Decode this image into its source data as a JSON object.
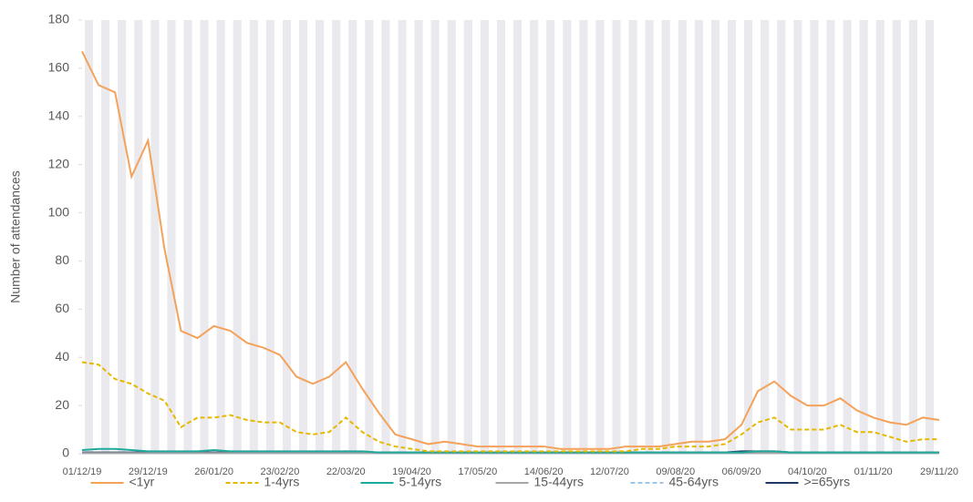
{
  "chart_data": {
    "type": "line",
    "y_label": "Number of attendances",
    "categories": [
      "01/12/19",
      null,
      null,
      null,
      "29/12/19",
      null,
      null,
      null,
      "26/01/20",
      null,
      null,
      null,
      "23/02/20",
      null,
      null,
      null,
      "22/03/20",
      null,
      null,
      null,
      "19/04/20",
      null,
      null,
      null,
      "17/05/20",
      null,
      null,
      null,
      "14/06/20",
      null,
      null,
      null,
      "12/07/20",
      null,
      null,
      null,
      "09/08/20",
      null,
      null,
      null,
      "06/09/20",
      null,
      null,
      null,
      "04/10/20",
      null,
      null,
      null,
      "01/11/20",
      null,
      null,
      null,
      "29/11/20"
    ],
    "ylim": [
      0,
      180
    ],
    "yticks": [
      0,
      20,
      40,
      60,
      80,
      100,
      120,
      140,
      160,
      180
    ],
    "series": [
      {
        "name": "<1yr",
        "color": "#f4a25a",
        "dashed": false,
        "values": [
          167,
          153,
          150,
          115,
          130,
          85,
          51,
          48,
          53,
          51,
          46,
          44,
          41,
          32,
          29,
          32,
          38,
          27,
          17,
          8,
          6,
          4,
          5,
          4,
          3,
          3,
          3,
          3,
          3,
          2,
          2,
          2,
          2,
          3,
          3,
          3,
          4,
          5,
          5,
          6,
          12,
          26,
          30,
          24,
          20,
          20,
          23,
          18,
          15,
          13,
          12,
          15,
          14
        ]
      },
      {
        "name": "1-4yrs",
        "color": "#e6b800",
        "dashed": true,
        "values": [
          38,
          37,
          31,
          29,
          25,
          22,
          11,
          15,
          15,
          16,
          14,
          13,
          13,
          9,
          8,
          9,
          15,
          9,
          5,
          3,
          2,
          1,
          1,
          1,
          1,
          1,
          1,
          1,
          1,
          1,
          1,
          1,
          1,
          1,
          2,
          2,
          3,
          3,
          3,
          4,
          8,
          13,
          15,
          10,
          10,
          10,
          12,
          9,
          9,
          7,
          5,
          6,
          6
        ]
      },
      {
        "name": "5-14yrs",
        "color": "#1fa99a",
        "dashed": false,
        "values": [
          1.5,
          2,
          2,
          1.5,
          1,
          1,
          1,
          1,
          1.5,
          1,
          1,
          1,
          1,
          1,
          1,
          1,
          1,
          1,
          0.5,
          0.5,
          0.5,
          0.5,
          0.5,
          0.5,
          0.5,
          0.5,
          0.5,
          0.5,
          0.5,
          0.5,
          0.5,
          0.5,
          0.5,
          0.5,
          0.5,
          0.5,
          0.5,
          0.5,
          0.5,
          0.5,
          0.5,
          1,
          1,
          0.5,
          0.5,
          0.5,
          0.5,
          0.5,
          0.5,
          0.5,
          0.5,
          0.5,
          0.5
        ]
      },
      {
        "name": "15-44yrs",
        "color": "#a6a6a6",
        "dashed": false,
        "values": [
          0.3,
          0.3,
          0.3,
          0.3,
          0.3,
          0.3,
          0.3,
          0.3,
          0.3,
          0.3,
          0.3,
          0.3,
          0.3,
          0.3,
          0.3,
          0.3,
          0.3,
          0.3,
          0.3,
          0.3,
          0.3,
          0.3,
          0.3,
          0.3,
          0.3,
          0.3,
          0.3,
          0.3,
          0.3,
          0.3,
          0.3,
          0.3,
          0.3,
          0.3,
          0.3,
          0.3,
          0.3,
          0.3,
          0.3,
          0.3,
          0.3,
          0.3,
          0.3,
          0.3,
          0.3,
          0.3,
          0.3,
          0.3,
          0.3,
          0.3,
          0.3,
          0.3,
          0.3
        ]
      },
      {
        "name": "45-64yrs",
        "color": "#9dc3e6",
        "dashed": true,
        "values": [
          0.2,
          0.2,
          0.2,
          0.2,
          0.2,
          0.2,
          0.2,
          0.2,
          0.2,
          0.2,
          0.2,
          0.2,
          0.2,
          0.2,
          0.2,
          0.2,
          0.2,
          0.2,
          0.2,
          0.2,
          0.2,
          0.2,
          0.2,
          0.2,
          0.2,
          0.2,
          0.2,
          0.2,
          0.2,
          0.2,
          0.2,
          0.2,
          0.2,
          0.2,
          0.2,
          0.2,
          0.2,
          0.2,
          0.2,
          0.2,
          0.2,
          0.2,
          0.2,
          0.2,
          0.2,
          0.2,
          0.2,
          0.2,
          0.2,
          0.2,
          0.2,
          0.2,
          0.2
        ]
      },
      {
        "name": ">=65yrs",
        "color": "#1f3864",
        "dashed": false,
        "values": [
          0.5,
          0.5,
          0.5,
          0.5,
          0.5,
          0.5,
          0.5,
          0.5,
          0.5,
          0.5,
          0.5,
          0.5,
          0.5,
          0.5,
          0.5,
          0.5,
          1,
          0.5,
          0.5,
          0.5,
          0.5,
          0.5,
          0.5,
          0.5,
          0.5,
          0.5,
          0.5,
          0.5,
          0.5,
          0.5,
          0.5,
          0.5,
          0.5,
          0.5,
          0.5,
          0.5,
          0.5,
          0.5,
          0.5,
          0.5,
          1,
          1,
          1,
          0.5,
          0.5,
          0.5,
          0.5,
          0.5,
          0.5,
          0.5,
          0.5,
          0.5,
          0.5
        ]
      }
    ]
  }
}
